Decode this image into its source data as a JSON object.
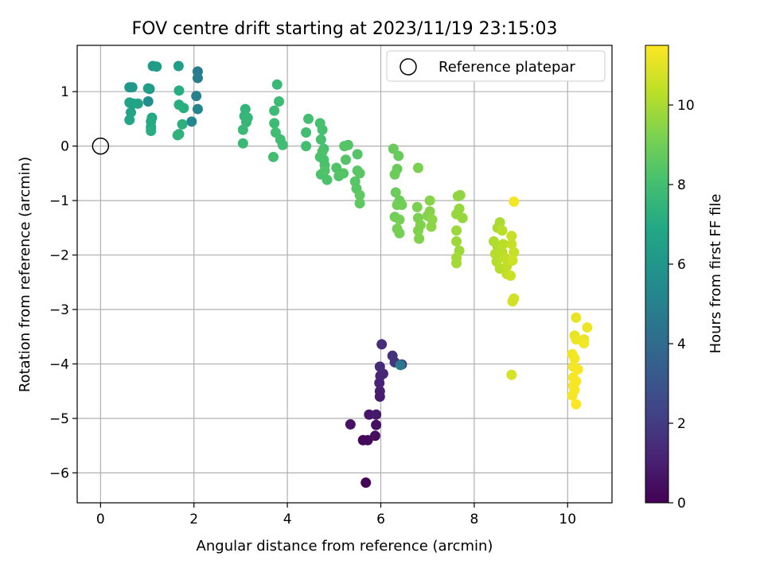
{
  "chart_data": {
    "type": "scatter",
    "title": "FOV centre drift starting at 2023/11/19 23:15:03",
    "xlabel": "Angular distance from reference (arcmin)",
    "ylabel": "Rotation from reference (arcmin)",
    "xlim": [
      -0.5,
      10.95
    ],
    "ylim": [
      -6.55,
      1.85
    ],
    "xticks": [
      0,
      2,
      4,
      6,
      8,
      10
    ],
    "yticks": [
      1,
      0,
      -1,
      -2,
      -3,
      -4,
      -5,
      -6
    ],
    "xtick_labels": [
      "0",
      "2",
      "4",
      "6",
      "8",
      "10"
    ],
    "ytick_labels": [
      "1",
      "0",
      "−1",
      "−2",
      "−3",
      "−4",
      "−5",
      "−6"
    ],
    "grid": true,
    "legend": {
      "position": "top-right",
      "label": "Reference platepar"
    },
    "reference_point": {
      "x": 0,
      "y": 0
    },
    "colorbar": {
      "label": "Hours from first FF file",
      "min": 0,
      "max": 11.5,
      "ticks": [
        0,
        2,
        4,
        6,
        8,
        10
      ],
      "tick_labels": [
        "0",
        "2",
        "4",
        "6",
        "8",
        "10"
      ],
      "colormap": "viridis"
    },
    "points": [
      [
        5.68,
        -6.18,
        0.1
      ],
      [
        5.62,
        -5.4,
        0.2
      ],
      [
        5.72,
        -5.4,
        0.3
      ],
      [
        5.88,
        -5.32,
        0.4
      ],
      [
        5.9,
        -5.12,
        0.5
      ],
      [
        5.35,
        -5.11,
        0.6
      ],
      [
        5.75,
        -4.93,
        0.7
      ],
      [
        5.9,
        -4.93,
        0.8
      ],
      [
        5.98,
        -4.6,
        0.9
      ],
      [
        5.98,
        -4.5,
        1.0
      ],
      [
        5.97,
        -4.35,
        1.1
      ],
      [
        5.99,
        -4.22,
        1.2
      ],
      [
        6.05,
        -4.18,
        1.3
      ],
      [
        5.98,
        -4.05,
        1.4
      ],
      [
        6.02,
        -3.64,
        1.5
      ],
      [
        6.25,
        -3.85,
        1.6
      ],
      [
        6.3,
        -3.97,
        1.7
      ],
      [
        6.45,
        -4.01,
        1.8
      ],
      [
        6.42,
        -4.02,
        4.6
      ],
      [
        2.08,
        1.37,
        4.8
      ],
      [
        2.08,
        1.25,
        4.9
      ],
      [
        2.05,
        0.92,
        5.0
      ],
      [
        2.08,
        0.68,
        5.2
      ],
      [
        1.95,
        0.45,
        5.3
      ],
      [
        1.02,
        0.82,
        5.6
      ],
      [
        1.05,
        1.05,
        5.8
      ],
      [
        0.62,
        1.08,
        6.0
      ],
      [
        0.68,
        1.08,
        6.1
      ],
      [
        1.12,
        1.47,
        6.2
      ],
      [
        1.2,
        1.46,
        6.3
      ],
      [
        1.67,
        1.47,
        6.4
      ],
      [
        1.02,
        1.06,
        6.5
      ],
      [
        0.62,
        0.8,
        6.6
      ],
      [
        0.65,
        0.62,
        6.7
      ],
      [
        0.62,
        0.48,
        6.8
      ],
      [
        0.7,
        0.78,
        6.6
      ],
      [
        0.8,
        0.78,
        6.7
      ],
      [
        1.1,
        0.52,
        6.9
      ],
      [
        1.08,
        0.45,
        7.0
      ],
      [
        1.08,
        0.35,
        7.0
      ],
      [
        1.08,
        0.28,
        7.1
      ],
      [
        1.68,
        1.02,
        7.1
      ],
      [
        1.68,
        0.76,
        7.2
      ],
      [
        1.78,
        0.7,
        7.2
      ],
      [
        1.75,
        0.4,
        7.3
      ],
      [
        1.68,
        0.22,
        7.3
      ],
      [
        1.65,
        0.2,
        7.4
      ],
      [
        3.1,
        0.68,
        7.5
      ],
      [
        3.08,
        0.55,
        7.5
      ],
      [
        3.12,
        0.44,
        7.6
      ],
      [
        3.15,
        0.52,
        7.6
      ],
      [
        3.05,
        0.3,
        7.7
      ],
      [
        3.05,
        0.05,
        7.7
      ],
      [
        3.78,
        1.13,
        7.7
      ],
      [
        3.82,
        0.82,
        7.8
      ],
      [
        3.72,
        0.65,
        7.8
      ],
      [
        3.72,
        0.42,
        7.8
      ],
      [
        3.75,
        0.25,
        7.9
      ],
      [
        3.85,
        0.12,
        7.9
      ],
      [
        3.9,
        0.02,
        7.9
      ],
      [
        3.7,
        -0.2,
        8.0
      ],
      [
        4.45,
        0.5,
        8.0
      ],
      [
        4.4,
        0.25,
        8.0
      ],
      [
        4.4,
        0.0,
        8.0
      ],
      [
        4.7,
        0.42,
        8.1
      ],
      [
        4.75,
        0.3,
        8.1
      ],
      [
        4.72,
        0.12,
        8.1
      ],
      [
        4.78,
        -0.05,
        8.1
      ],
      [
        4.7,
        -0.2,
        8.2
      ],
      [
        4.8,
        -0.35,
        8.2
      ],
      [
        4.72,
        -0.52,
        8.2
      ],
      [
        4.85,
        -0.62,
        8.2
      ],
      [
        4.8,
        -0.45,
        8.3
      ],
      [
        4.75,
        -0.1,
        8.2
      ],
      [
        4.78,
        -0.25,
        8.2
      ],
      [
        5.05,
        -0.4,
        8.3
      ],
      [
        5.1,
        -0.55,
        8.3
      ],
      [
        5.2,
        -0.5,
        8.4
      ],
      [
        5.25,
        -0.25,
        8.4
      ],
      [
        5.22,
        0.0,
        8.4
      ],
      [
        5.3,
        0.02,
        8.4
      ],
      [
        5.5,
        -0.15,
        8.4
      ],
      [
        5.5,
        -0.45,
        8.5
      ],
      [
        5.55,
        -0.5,
        8.5
      ],
      [
        5.48,
        -0.78,
        8.5
      ],
      [
        5.55,
        -0.9,
        8.6
      ],
      [
        5.55,
        -1.05,
        8.6
      ],
      [
        5.45,
        -0.65,
        8.5
      ],
      [
        6.27,
        -0.05,
        8.8
      ],
      [
        6.38,
        -0.18,
        8.8
      ],
      [
        6.35,
        -0.42,
        8.8
      ],
      [
        6.3,
        -0.52,
        8.9
      ],
      [
        6.32,
        -0.85,
        8.9
      ],
      [
        6.4,
        -1.0,
        8.9
      ],
      [
        6.45,
        -1.08,
        9.0
      ],
      [
        6.35,
        -1.08,
        9.0
      ],
      [
        6.3,
        -1.3,
        9.0
      ],
      [
        6.4,
        -1.35,
        9.1
      ],
      [
        6.35,
        -1.52,
        9.1
      ],
      [
        6.4,
        -1.6,
        9.1
      ],
      [
        6.8,
        -0.4,
        9.2
      ],
      [
        6.78,
        -1.12,
        9.2
      ],
      [
        6.8,
        -1.32,
        9.2
      ],
      [
        6.85,
        -1.45,
        9.3
      ],
      [
        6.8,
        -1.55,
        9.3
      ],
      [
        6.82,
        -1.7,
        9.3
      ],
      [
        7.05,
        -1.0,
        9.4
      ],
      [
        7.05,
        -1.2,
        9.4
      ],
      [
        7.0,
        -1.28,
        9.4
      ],
      [
        7.1,
        -1.35,
        9.5
      ],
      [
        7.08,
        -1.48,
        9.5
      ],
      [
        7.7,
        -0.9,
        9.6
      ],
      [
        7.65,
        -0.92,
        9.6
      ],
      [
        7.68,
        -1.15,
        9.7
      ],
      [
        7.62,
        -1.25,
        9.7
      ],
      [
        7.75,
        -1.32,
        9.7
      ],
      [
        7.62,
        -1.55,
        9.8
      ],
      [
        7.62,
        -1.75,
        9.8
      ],
      [
        7.68,
        -1.92,
        9.8
      ],
      [
        7.62,
        -2.05,
        9.9
      ],
      [
        7.62,
        -2.15,
        9.9
      ],
      [
        8.5,
        -1.5,
        10.0
      ],
      [
        8.55,
        -1.4,
        10.0
      ],
      [
        8.42,
        -1.75,
        10.1
      ],
      [
        8.5,
        -1.85,
        10.1
      ],
      [
        8.45,
        -1.98,
        10.2
      ],
      [
        8.48,
        -2.12,
        10.2
      ],
      [
        8.55,
        -2.25,
        10.2
      ],
      [
        8.6,
        -1.55,
        10.3
      ],
      [
        8.62,
        -1.8,
        10.3
      ],
      [
        8.6,
        -1.95,
        10.3
      ],
      [
        8.65,
        -2.05,
        10.4
      ],
      [
        8.7,
        -2.2,
        10.4
      ],
      [
        8.7,
        -2.35,
        10.4
      ],
      [
        8.8,
        -1.65,
        10.5
      ],
      [
        8.8,
        -1.8,
        10.5
      ],
      [
        8.85,
        -1.95,
        10.5
      ],
      [
        8.82,
        -2.1,
        10.6
      ],
      [
        8.78,
        -2.38,
        10.6
      ],
      [
        8.82,
        -2.85,
        10.7
      ],
      [
        8.85,
        -2.8,
        10.7
      ],
      [
        8.8,
        -4.2,
        10.8
      ],
      [
        8.85,
        -1.02,
        11.3
      ],
      [
        10.18,
        -3.15,
        11.1
      ],
      [
        10.42,
        -3.33,
        11.2
      ],
      [
        10.15,
        -3.48,
        11.1
      ],
      [
        10.18,
        -3.55,
        11.2
      ],
      [
        10.35,
        -3.55,
        11.2
      ],
      [
        10.35,
        -3.62,
        11.3
      ],
      [
        10.1,
        -3.82,
        11.3
      ],
      [
        10.15,
        -3.9,
        11.3
      ],
      [
        10.12,
        -4.05,
        11.3
      ],
      [
        10.22,
        -4.1,
        11.4
      ],
      [
        10.12,
        -4.25,
        11.4
      ],
      [
        10.18,
        -4.32,
        11.4
      ],
      [
        10.12,
        -4.4,
        11.4
      ],
      [
        10.15,
        -4.48,
        11.4
      ],
      [
        10.1,
        -4.58,
        11.4
      ],
      [
        10.18,
        -4.74,
        11.5
      ]
    ]
  }
}
